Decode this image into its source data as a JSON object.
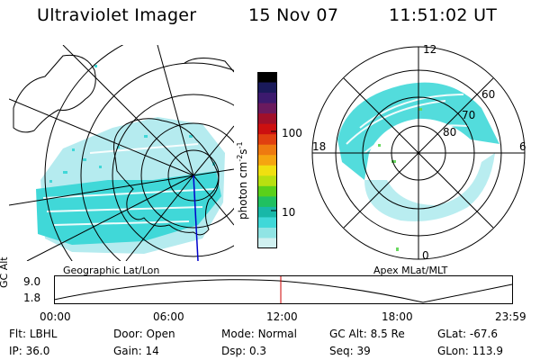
{
  "header": {
    "instrument": "Ultraviolet Imager",
    "date": "15 Nov 07",
    "time": "11:51:02 UT"
  },
  "geo_panel": {
    "caption": "Geographic Lat/Lon"
  },
  "colorbar": {
    "units_label": "photon cm",
    "units_sup1": "-2",
    "units_s": "s",
    "units_sup2": "-1",
    "ticks": [
      "100",
      "10"
    ],
    "colors": [
      "#000000",
      "#1a1a5a",
      "#3c1a6e",
      "#6a1a5e",
      "#a0102a",
      "#cc1010",
      "#e04010",
      "#ee7a10",
      "#f5a510",
      "#f0e010",
      "#b8e010",
      "#5ad01a",
      "#20c060",
      "#18b8a8",
      "#40d8d8",
      "#90e4e4",
      "#d0f0f0"
    ]
  },
  "apex_panel": {
    "caption": "Apex  MLat/MLT",
    "mlt_labels": [
      "12",
      "18",
      "6",
      "0"
    ],
    "lat_labels": [
      "60",
      "70",
      "80"
    ]
  },
  "timeline": {
    "ylabel": "GC Alt",
    "ymax": "9.0",
    "ymin": "1.8",
    "ticks": [
      "00:00",
      "06:00",
      "12:00",
      "18:00",
      "23:59"
    ],
    "current_time": "11:51"
  },
  "footer": {
    "rows": [
      [
        {
          "label": "Flt:",
          "value": "LBHL"
        },
        {
          "label": "Door:",
          "value": "Open"
        },
        {
          "label": "Mode:",
          "value": "Normal"
        },
        {
          "label": "GC Alt:",
          "value": "8.5 Re"
        },
        {
          "label": "GLat:",
          "value": "-67.6"
        }
      ],
      [
        {
          "label": "IP:",
          "value": "36.0"
        },
        {
          "label": "Gain:",
          "value": "14"
        },
        {
          "label": "Dsp:",
          "value": "0.3"
        },
        {
          "label": "Seq:",
          "value": "39"
        },
        {
          "label": "GLon:",
          "value": "113.9"
        }
      ]
    ]
  },
  "colors": {
    "aurora_cyan": "#40d8d8",
    "aurora_light": "#a8e8ec",
    "aurora_green": "#6ad860",
    "time_marker": "#cc0000",
    "meridian": "#0000cc"
  }
}
